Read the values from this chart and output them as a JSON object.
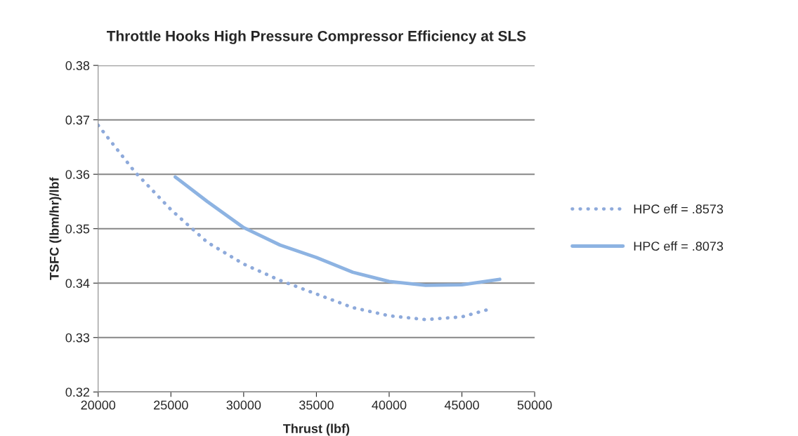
{
  "chart_data": {
    "type": "line",
    "title": "Throttle Hooks High Pressure Compressor Efficiency at SLS",
    "xlabel": "Thrust (lbf)",
    "ylabel": "TSFC (lbm/hr)/lbf",
    "xlim": [
      20000,
      50000
    ],
    "xticks": [
      20000,
      25000,
      30000,
      35000,
      40000,
      45000,
      50000
    ],
    "ylim": [
      0.32,
      0.38
    ],
    "yticks": [
      0.32,
      0.33,
      0.34,
      0.35,
      0.36,
      0.37,
      0.38
    ],
    "grid": "y",
    "legend": "right",
    "marker": "none",
    "series": [
      {
        "name": "HPC eff = .8573",
        "color": "#8eaadb",
        "line_style": "dotted",
        "x": [
          20000,
          22500,
          25000,
          27500,
          30000,
          32500,
          35000,
          37500,
          40000,
          42500,
          45000,
          47000
        ],
        "values": [
          0.369,
          0.3605,
          0.3535,
          0.3475,
          0.3435,
          0.3405,
          0.338,
          0.3355,
          0.334,
          0.3333,
          0.3338,
          0.3353
        ]
      },
      {
        "name": "HPC eff = .8073",
        "color": "#8db3e2",
        "line_style": "solid",
        "x": [
          25300,
          27500,
          30000,
          32500,
          35000,
          37500,
          40000,
          42500,
          45000,
          47600
        ],
        "values": [
          0.3595,
          0.355,
          0.3502,
          0.347,
          0.3447,
          0.342,
          0.3403,
          0.3396,
          0.3397,
          0.3407
        ]
      }
    ]
  }
}
